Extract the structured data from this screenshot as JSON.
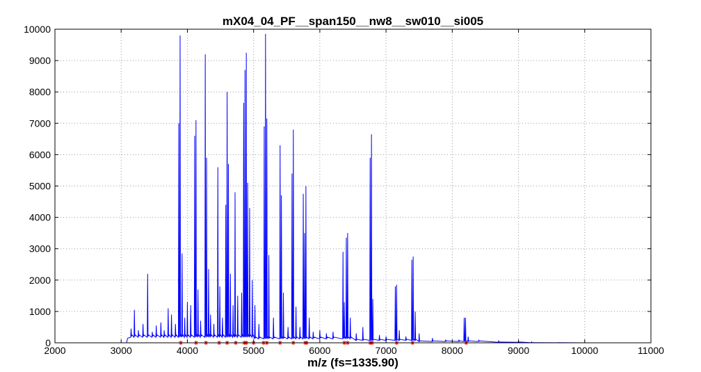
{
  "chart_data": {
    "type": "line",
    "title": "mX04_04_PF__span150__nw8__sw010__si005",
    "xlabel": "m/z (fs=1335.90)",
    "ylabel": "",
    "xlim": [
      2000,
      11000
    ],
    "ylim": [
      0,
      10000
    ],
    "xticks": [
      2000,
      3000,
      4000,
      5000,
      6000,
      7000,
      8000,
      9000,
      10000,
      11000
    ],
    "yticks": [
      0,
      1000,
      2000,
      3000,
      4000,
      5000,
      6000,
      7000,
      8000,
      9000,
      10000
    ],
    "grid": true,
    "colors": {
      "spectrum": "#0000ff",
      "peak_markers": "#ff0000",
      "grid": "#9a9a9a"
    },
    "series": [
      {
        "style": "line",
        "peaks": [
          {
            "x": 3150,
            "y": 450
          },
          {
            "x": 3200,
            "y": 1050
          },
          {
            "x": 3260,
            "y": 400
          },
          {
            "x": 3330,
            "y": 600
          },
          {
            "x": 3400,
            "y": 2200
          },
          {
            "x": 3470,
            "y": 350
          },
          {
            "x": 3530,
            "y": 550
          },
          {
            "x": 3600,
            "y": 650
          },
          {
            "x": 3650,
            "y": 400
          },
          {
            "x": 3710,
            "y": 1100
          },
          {
            "x": 3760,
            "y": 900
          },
          {
            "x": 3820,
            "y": 600
          },
          {
            "x": 3870,
            "y": 7000
          },
          {
            "x": 3890,
            "y": 9800
          },
          {
            "x": 3920,
            "y": 2850
          },
          {
            "x": 3960,
            "y": 800
          },
          {
            "x": 4000,
            "y": 1300
          },
          {
            "x": 4050,
            "y": 1200
          },
          {
            "x": 4110,
            "y": 6600
          },
          {
            "x": 4130,
            "y": 7100
          },
          {
            "x": 4160,
            "y": 1700
          },
          {
            "x": 4200,
            "y": 700
          },
          {
            "x": 4270,
            "y": 9200
          },
          {
            "x": 4290,
            "y": 5900
          },
          {
            "x": 4320,
            "y": 2350
          },
          {
            "x": 4350,
            "y": 900
          },
          {
            "x": 4400,
            "y": 600
          },
          {
            "x": 4460,
            "y": 5600
          },
          {
            "x": 4490,
            "y": 1800
          },
          {
            "x": 4530,
            "y": 800
          },
          {
            "x": 4580,
            "y": 4400
          },
          {
            "x": 4600,
            "y": 8000
          },
          {
            "x": 4620,
            "y": 5700
          },
          {
            "x": 4650,
            "y": 2200
          },
          {
            "x": 4690,
            "y": 1200
          },
          {
            "x": 4720,
            "y": 4800
          },
          {
            "x": 4760,
            "y": 1500
          },
          {
            "x": 4820,
            "y": 1600
          },
          {
            "x": 4850,
            "y": 7650
          },
          {
            "x": 4870,
            "y": 8700
          },
          {
            "x": 4890,
            "y": 9250
          },
          {
            "x": 4910,
            "y": 5100
          },
          {
            "x": 4940,
            "y": 4300
          },
          {
            "x": 4980,
            "y": 2000
          },
          {
            "x": 5020,
            "y": 1200
          },
          {
            "x": 5080,
            "y": 600
          },
          {
            "x": 5160,
            "y": 6900
          },
          {
            "x": 5180,
            "y": 9850
          },
          {
            "x": 5200,
            "y": 7150
          },
          {
            "x": 5230,
            "y": 2800
          },
          {
            "x": 5300,
            "y": 800
          },
          {
            "x": 5400,
            "y": 6300
          },
          {
            "x": 5420,
            "y": 4700
          },
          {
            "x": 5450,
            "y": 1600
          },
          {
            "x": 5520,
            "y": 500
          },
          {
            "x": 5580,
            "y": 5400
          },
          {
            "x": 5600,
            "y": 6800
          },
          {
            "x": 5640,
            "y": 1150
          },
          {
            "x": 5700,
            "y": 500
          },
          {
            "x": 5750,
            "y": 4750
          },
          {
            "x": 5770,
            "y": 3500
          },
          {
            "x": 5790,
            "y": 5000
          },
          {
            "x": 5840,
            "y": 800
          },
          {
            "x": 5900,
            "y": 350
          },
          {
            "x": 6000,
            "y": 400
          },
          {
            "x": 6100,
            "y": 300
          },
          {
            "x": 6200,
            "y": 350
          },
          {
            "x": 6350,
            "y": 2900
          },
          {
            "x": 6370,
            "y": 1300
          },
          {
            "x": 6400,
            "y": 3350
          },
          {
            "x": 6420,
            "y": 3500
          },
          {
            "x": 6460,
            "y": 800
          },
          {
            "x": 6550,
            "y": 300
          },
          {
            "x": 6650,
            "y": 500
          },
          {
            "x": 6760,
            "y": 5900
          },
          {
            "x": 6780,
            "y": 6650
          },
          {
            "x": 6800,
            "y": 1400
          },
          {
            "x": 6900,
            "y": 250
          },
          {
            "x": 7000,
            "y": 200
          },
          {
            "x": 7140,
            "y": 1800
          },
          {
            "x": 7160,
            "y": 1850
          },
          {
            "x": 7200,
            "y": 400
          },
          {
            "x": 7300,
            "y": 200
          },
          {
            "x": 7390,
            "y": 2650
          },
          {
            "x": 7410,
            "y": 2750
          },
          {
            "x": 7440,
            "y": 1000
          },
          {
            "x": 7500,
            "y": 300
          },
          {
            "x": 7700,
            "y": 150
          },
          {
            "x": 7900,
            "y": 100
          },
          {
            "x": 8100,
            "y": 100
          },
          {
            "x": 8180,
            "y": 800
          },
          {
            "x": 8200,
            "y": 800
          },
          {
            "x": 8240,
            "y": 200
          },
          {
            "x": 8400,
            "y": 80
          },
          {
            "x": 8700,
            "y": 60
          },
          {
            "x": 9000,
            "y": 50
          },
          {
            "x": 9200,
            "y": 30
          },
          {
            "x": 9600,
            "y": 10
          },
          {
            "x": 10000,
            "y": 5
          }
        ]
      },
      {
        "style": "markers",
        "x": [
          3900,
          4130,
          4280,
          4480,
          4600,
          4730,
          4860,
          4890,
          5000,
          5150,
          5200,
          5400,
          5600,
          5780,
          5800,
          6370,
          6420,
          6760,
          6790,
          7160,
          7400,
          8210
        ]
      }
    ]
  }
}
